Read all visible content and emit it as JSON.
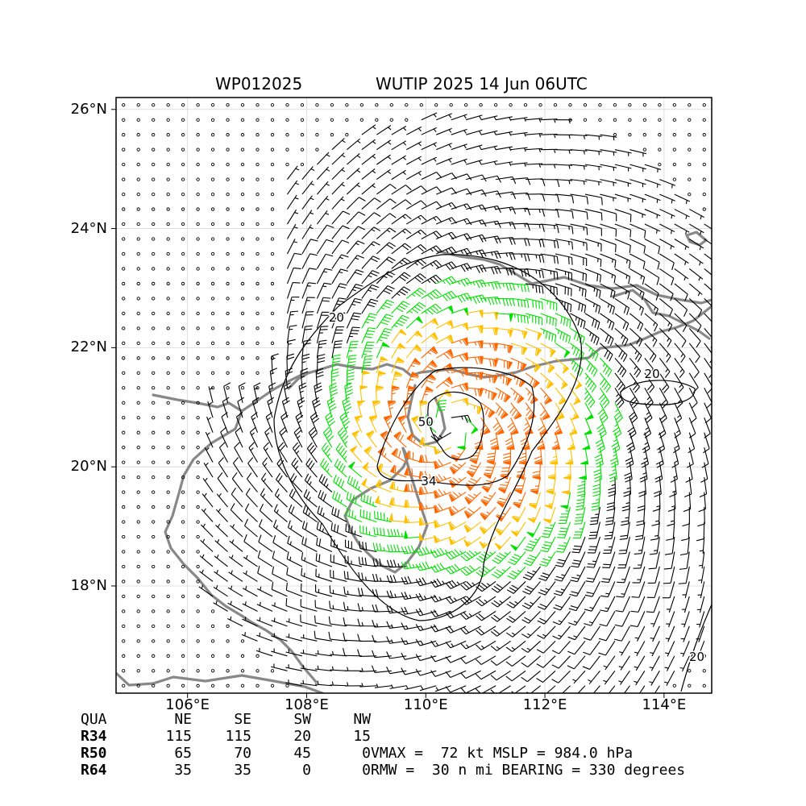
{
  "titles": {
    "storm_id": "WP012025",
    "storm_time": "WUTIP 2025 14 Jun 06UTC"
  },
  "map": {
    "lat_range": [
      16.2,
      26.2
    ],
    "lon_range": [
      104.8,
      114.8
    ],
    "lat_ticks": [
      {
        "v": 18,
        "label": "18°N"
      },
      {
        "v": 20,
        "label": "20°N"
      },
      {
        "v": 22,
        "label": "22°N"
      },
      {
        "v": 24,
        "label": "24°N"
      },
      {
        "v": 26,
        "label": "26°N"
      }
    ],
    "lon_ticks": [
      {
        "v": 106,
        "label": "106°E"
      },
      {
        "v": 108,
        "label": "108°E"
      },
      {
        "v": 110,
        "label": "110°E"
      },
      {
        "v": 112,
        "label": "112°E"
      },
      {
        "v": 114,
        "label": "114°E"
      }
    ],
    "grid": true
  },
  "chart_data": {
    "type": "wind-barb map",
    "storm_center": {
      "lon": 110.4,
      "lat": 20.7
    },
    "wind_colors": {
      "below34": "#000000",
      "r34": "#00e000",
      "r50": "#ffc000",
      "r64": "#ff6600"
    },
    "contour_labels": [
      {
        "text": "20",
        "lon": 108.5,
        "lat": 22.5
      },
      {
        "text": "34",
        "lon": 110.05,
        "lat": 19.75
      },
      {
        "text": "50",
        "lon": 110.0,
        "lat": 20.75
      },
      {
        "text": "20",
        "lon": 113.8,
        "lat": 21.55
      },
      {
        "text": "20",
        "lon": 114.55,
        "lat": 16.8
      }
    ]
  },
  "table": {
    "header": [
      "QUA",
      "NE",
      "SE",
      "SW",
      "NW"
    ],
    "rows": [
      [
        "R34",
        "115",
        "115",
        "20",
        "15"
      ],
      [
        "R50",
        "65",
        "70",
        "45",
        "0"
      ],
      [
        "R64",
        "35",
        "35",
        "0",
        "0"
      ]
    ]
  },
  "info": {
    "line1": "VMAX =  72 kt MSLP = 984.0 hPa",
    "line2": "RMW =  30 n mi BEARING = 330 degrees"
  }
}
